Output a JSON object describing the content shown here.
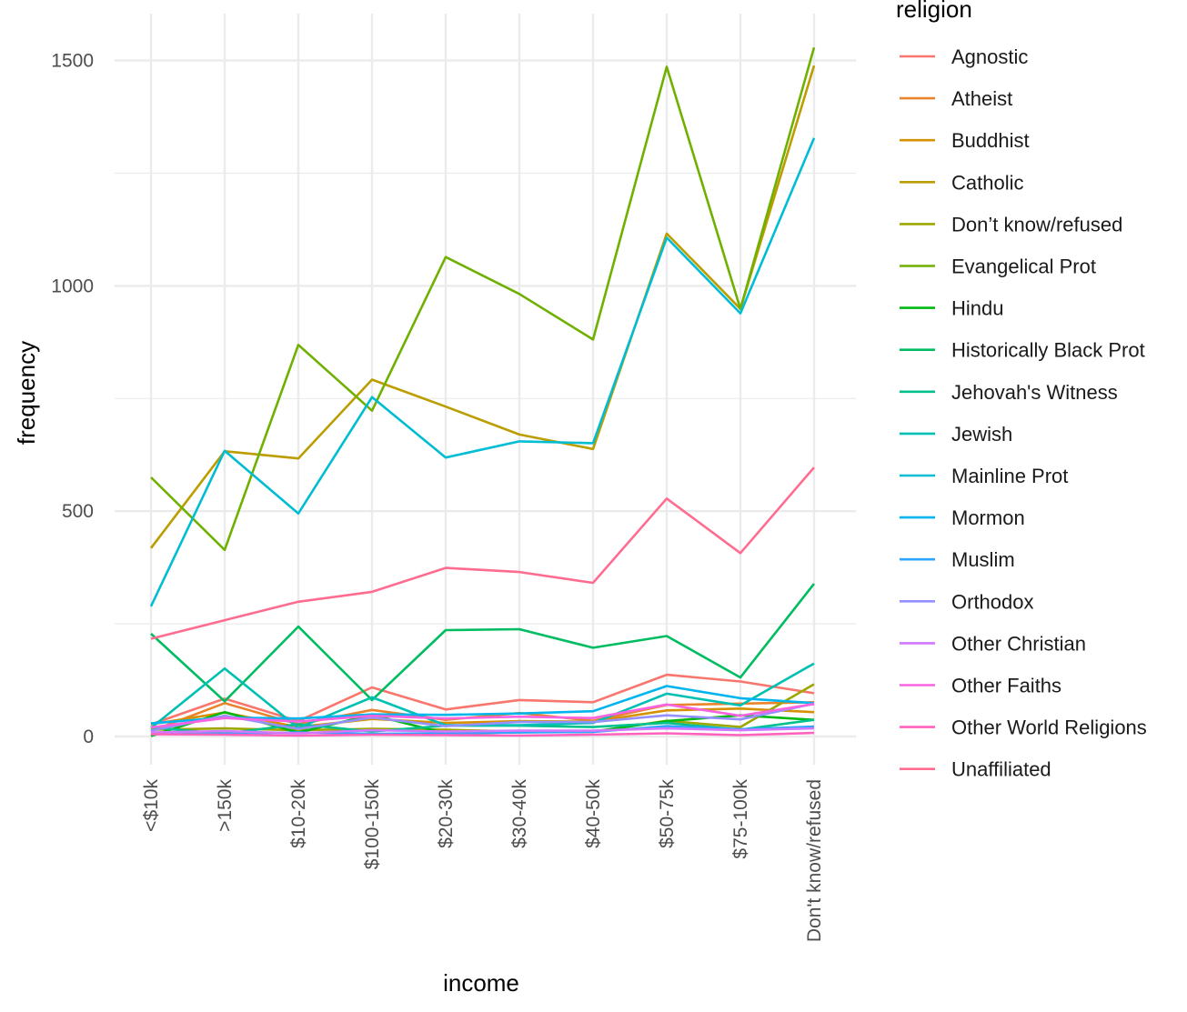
{
  "chart_data": {
    "type": "line",
    "xlabel": "income",
    "ylabel": "frequency",
    "ylim": [
      -70,
      1600
    ],
    "y_ticks": [
      0,
      500,
      1000,
      1500
    ],
    "grid": true,
    "legend_title": "religion",
    "legend_position": "right",
    "categories": [
      "<$10k",
      ">150k",
      "$10-20k",
      "$100-150k",
      "$20-30k",
      "$30-40k",
      "$40-50k",
      "$50-75k",
      "$75-100k",
      "Don't know/refused"
    ],
    "series": [
      {
        "name": "Agnostic",
        "color": "#F8766D",
        "values": [
          27,
          84,
          34,
          109,
          60,
          81,
          76,
          137,
          122,
          96
        ]
      },
      {
        "name": "Atheist",
        "color": "#E9842C",
        "values": [
          12,
          74,
          27,
          59,
          37,
          52,
          35,
          70,
          73,
          76
        ]
      },
      {
        "name": "Buddhist",
        "color": "#D69100",
        "values": [
          27,
          53,
          21,
          39,
          30,
          34,
          33,
          58,
          62,
          54
        ]
      },
      {
        "name": "Catholic",
        "color": "#BC9D00",
        "values": [
          418,
          633,
          617,
          792,
          732,
          670,
          638,
          1116,
          949,
          1489
        ]
      },
      {
        "name": "Don’t know/refused",
        "color": "#9CA700",
        "values": [
          15,
          18,
          14,
          17,
          15,
          11,
          10,
          35,
          21,
          116
        ]
      },
      {
        "name": "Evangelical Prot",
        "color": "#6FB000",
        "values": [
          575,
          414,
          869,
          723,
          1064,
          982,
          881,
          1486,
          949,
          1529
        ]
      },
      {
        "name": "Hindu",
        "color": "#00B813",
        "values": [
          1,
          54,
          9,
          48,
          7,
          9,
          11,
          34,
          47,
          37
        ]
      },
      {
        "name": "Historically Black Prot",
        "color": "#00BD61",
        "values": [
          228,
          78,
          244,
          81,
          236,
          238,
          197,
          223,
          131,
          339
        ]
      },
      {
        "name": "Jehovah's Witness",
        "color": "#00C08E",
        "values": [
          20,
          6,
          27,
          11,
          24,
          24,
          21,
          30,
          15,
          37
        ]
      },
      {
        "name": "Jewish",
        "color": "#00C0B4",
        "values": [
          19,
          151,
          19,
          87,
          25,
          25,
          30,
          95,
          69,
          162
        ]
      },
      {
        "name": "Mainline Prot",
        "color": "#00BDD4",
        "values": [
          289,
          634,
          495,
          753,
          619,
          655,
          651,
          1107,
          939,
          1328
        ]
      },
      {
        "name": "Mormon",
        "color": "#00B5EE",
        "values": [
          29,
          42,
          40,
          49,
          48,
          51,
          56,
          112,
          85,
          74
        ]
      },
      {
        "name": "Muslim",
        "color": "#2FA4FF",
        "values": [
          6,
          6,
          9,
          6,
          7,
          9,
          10,
          23,
          16,
          22
        ]
      },
      {
        "name": "Orthodox",
        "color": "#9590FF",
        "values": [
          13,
          46,
          17,
          42,
          23,
          32,
          32,
          47,
          38,
          73
        ]
      },
      {
        "name": "Other Christian",
        "color": "#D277FF",
        "values": [
          9,
          12,
          7,
          14,
          11,
          13,
          13,
          18,
          14,
          18
        ]
      },
      {
        "name": "Other Faiths",
        "color": "#F763E0",
        "values": [
          20,
          41,
          33,
          46,
          40,
          44,
          41,
          71,
          46,
          72
        ]
      },
      {
        "name": "Other World Religions",
        "color": "#FF62BC",
        "values": [
          5,
          4,
          2,
          4,
          3,
          2,
          4,
          7,
          3,
          8
        ]
      },
      {
        "name": "Unaffiliated",
        "color": "#FF6C90",
        "values": [
          217,
          258,
          299,
          321,
          374,
          365,
          341,
          528,
          407,
          597
        ]
      }
    ]
  }
}
